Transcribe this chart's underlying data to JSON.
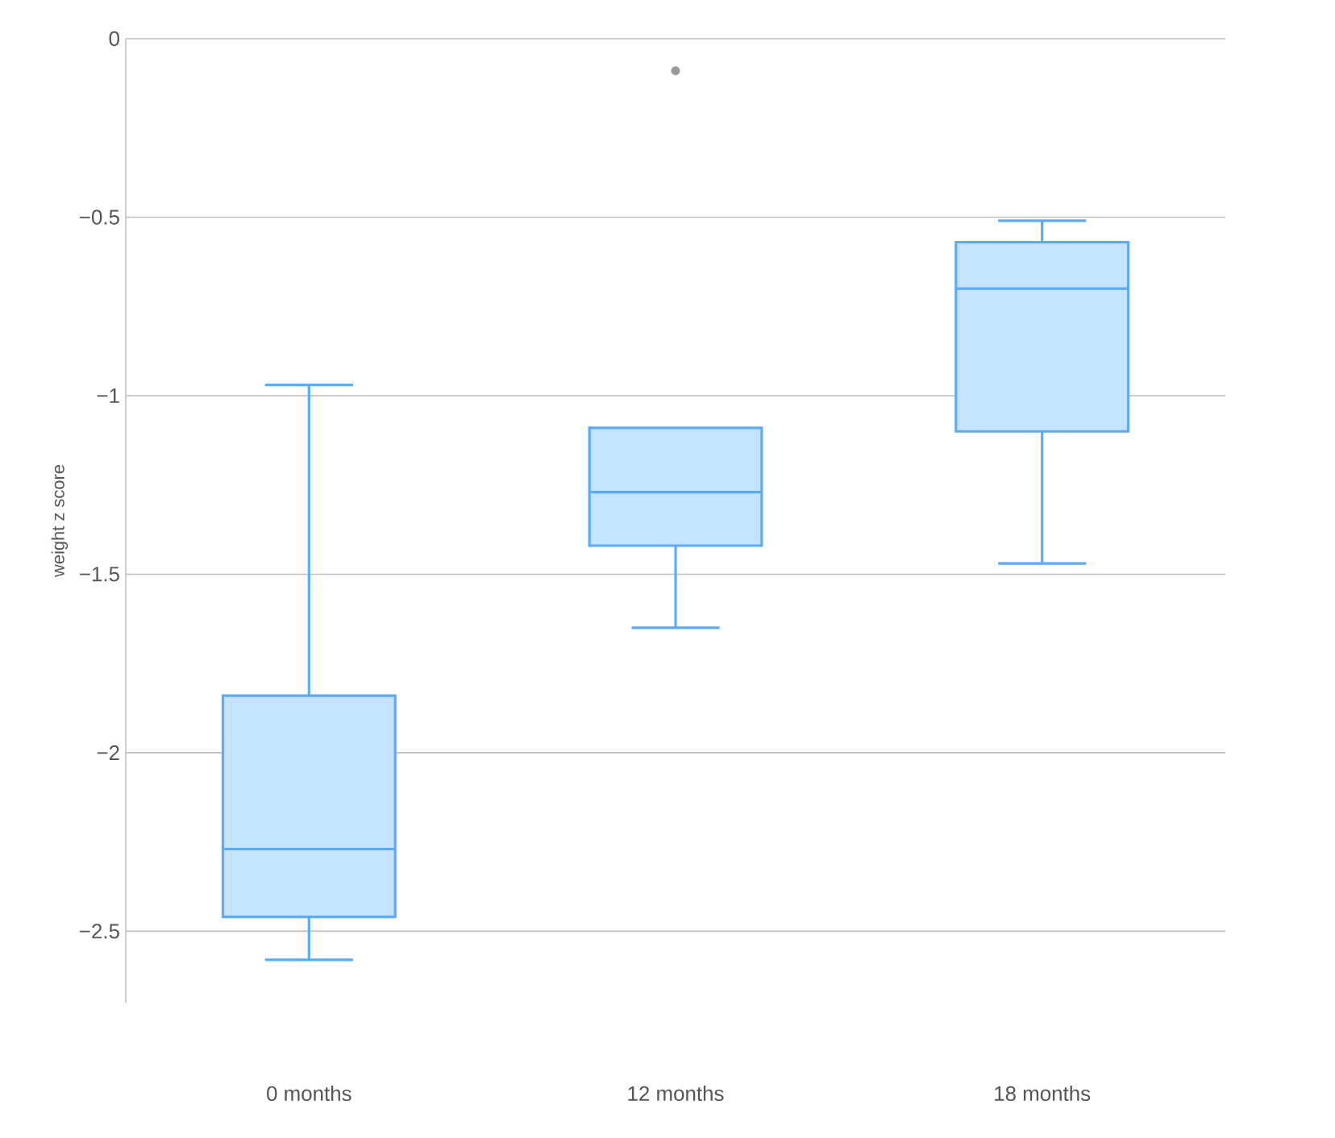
{
  "chart_data": {
    "type": "box",
    "ylabel": "weight z score",
    "categories": [
      "0 months",
      "12 months",
      "18 months"
    ],
    "boxes": [
      {
        "low": -2.58,
        "q1": -2.46,
        "median": -2.27,
        "q3": -1.84,
        "high": -0.97
      },
      {
        "low": -1.65,
        "q1": -1.42,
        "median": -1.27,
        "q3": -1.09,
        "high": -1.09,
        "outliers": [
          -0.09
        ]
      },
      {
        "low": -1.47,
        "q1": -1.1,
        "median": -0.7,
        "q3": -0.57,
        "high": -0.51
      }
    ],
    "color": "#5aabfe",
    "ylim": [
      -2.7,
      0
    ],
    "yticks": [
      {
        "value": 0,
        "label": "0"
      },
      {
        "value": -0.5,
        "label": "−0.5"
      },
      {
        "value": -1,
        "label": "−1"
      },
      {
        "value": -1.5,
        "label": "−1.5"
      },
      {
        "value": -2,
        "label": "−2"
      },
      {
        "value": -2.5,
        "label": "−2.5"
      }
    ],
    "grid": "y"
  }
}
